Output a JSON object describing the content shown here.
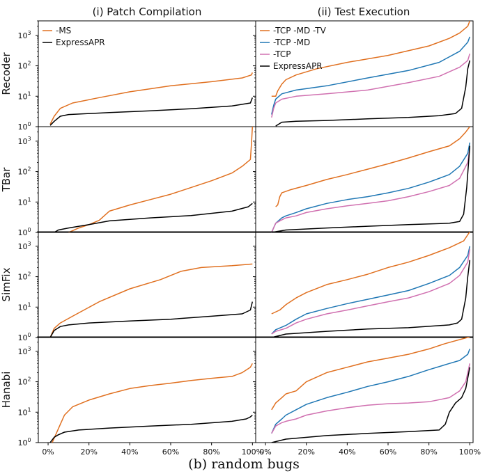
{
  "figure": {
    "caption": "(b) random bugs",
    "column_titles": [
      "(i) Patch Compilation",
      "(ii) Test Execution"
    ],
    "row_labels": [
      "Recoder",
      "TBar",
      "SimFix",
      "Hanabi"
    ],
    "x_ticks": [
      "0%",
      "20%",
      "40%",
      "60%",
      "80%",
      "100%"
    ],
    "y_ticks": [
      "10^0",
      "10^1",
      "10^2",
      "10^3"
    ]
  },
  "colors": {
    "orange": "#e07020",
    "blue": "#1f77b4",
    "pink": "#d070b0",
    "black": "#000000"
  },
  "chart_data": [
    {
      "type": "line",
      "panel": "Recoder / (i) Patch Compilation",
      "xlim": [
        0,
        100
      ],
      "ylim": [
        1,
        3000
      ],
      "yscale": "log",
      "legend": "top-left",
      "series": [
        {
          "name": "-MS",
          "color": "orange",
          "x": [
            1,
            3,
            6,
            12,
            25,
            40,
            60,
            80,
            95,
            99.5,
            100
          ],
          "y": [
            1.2,
            2.2,
            4,
            6,
            9,
            14,
            22,
            30,
            40,
            50,
            60
          ]
        },
        {
          "name": "ExpressAPR",
          "color": "black",
          "x": [
            1,
            3,
            6,
            10,
            30,
            50,
            70,
            90,
            99,
            100
          ],
          "y": [
            1.1,
            1.5,
            2.2,
            2.5,
            2.9,
            3.3,
            3.9,
            4.8,
            6,
            9
          ]
        }
      ]
    },
    {
      "type": "line",
      "panel": "Recoder / (ii) Test Execution",
      "xlim": [
        0,
        100
      ],
      "ylim": [
        1,
        3000
      ],
      "yscale": "log",
      "legend": "top-left",
      "series": [
        {
          "name": "-TCP -MD -TV",
          "color": "orange",
          "x": [
            3,
            5,
            6,
            8,
            10,
            15,
            25,
            40,
            60,
            80,
            90,
            95,
            99,
            100
          ],
          "y": [
            10,
            10,
            15,
            25,
            35,
            50,
            80,
            130,
            220,
            450,
            800,
            1200,
            2000,
            3000
          ]
        },
        {
          "name": "-TCP -MD",
          "color": "blue",
          "x": [
            3,
            4,
            5,
            8,
            15,
            30,
            50,
            70,
            85,
            95,
            99,
            100
          ],
          "y": [
            2.5,
            5,
            8,
            12,
            16,
            22,
            40,
            70,
            130,
            300,
            600,
            900
          ]
        },
        {
          "name": "-TCP",
          "color": "pink",
          "x": [
            3,
            4,
            5,
            8,
            15,
            30,
            50,
            70,
            85,
            95,
            99,
            100
          ],
          "y": [
            2,
            4,
            6,
            8,
            10,
            12,
            16,
            28,
            45,
            90,
            150,
            250
          ]
        },
        {
          "name": "ExpressAPR",
          "color": "black",
          "x": [
            5,
            8,
            15,
            30,
            50,
            70,
            85,
            93,
            96,
            98,
            99,
            100
          ],
          "y": [
            1.05,
            1.4,
            1.5,
            1.6,
            1.8,
            2.0,
            2.3,
            2.7,
            4,
            20,
            80,
            150
          ]
        }
      ]
    },
    {
      "type": "line",
      "panel": "TBar / (i) Patch Compilation",
      "xlim": [
        0,
        100
      ],
      "ylim": [
        1,
        3000
      ],
      "yscale": "log",
      "series": [
        {
          "name": "-MS",
          "color": "orange",
          "x": [
            10,
            15,
            20,
            25,
            30,
            40,
            50,
            60,
            70,
            80,
            90,
            95,
            99,
            99.5,
            100
          ],
          "y": [
            1,
            1.4,
            1.8,
            2.5,
            5,
            8,
            12,
            18,
            30,
            50,
            90,
            150,
            250,
            800,
            3000
          ]
        },
        {
          "name": "ExpressAPR",
          "color": "black",
          "x": [
            3,
            5,
            10,
            20,
            30,
            50,
            70,
            90,
            98,
            100
          ],
          "y": [
            1,
            1.2,
            1.4,
            1.8,
            2.4,
            3,
            3.6,
            5,
            7,
            9
          ]
        }
      ]
    },
    {
      "type": "line",
      "panel": "TBar / (ii) Test Execution",
      "xlim": [
        0,
        100
      ],
      "ylim": [
        1,
        3000
      ],
      "yscale": "log",
      "series": [
        {
          "name": "-TCP -MD -TV",
          "color": "orange",
          "x": [
            5,
            6,
            7,
            8,
            12,
            20,
            30,
            40,
            50,
            60,
            70,
            80,
            90,
            95,
            98,
            100
          ],
          "y": [
            7,
            8,
            15,
            20,
            25,
            35,
            55,
            80,
            120,
            180,
            280,
            450,
            700,
            1200,
            2000,
            3000
          ]
        },
        {
          "name": "-TCP -MD",
          "color": "blue",
          "x": [
            3,
            5,
            8,
            10,
            15,
            20,
            30,
            40,
            50,
            60,
            70,
            80,
            90,
            95,
            99,
            100
          ],
          "y": [
            1,
            2,
            3,
            3.5,
            4.5,
            6,
            9,
            12,
            15,
            20,
            28,
            45,
            80,
            150,
            400,
            900
          ]
        },
        {
          "name": "-TCP",
          "color": "pink",
          "x": [
            3,
            5,
            8,
            10,
            15,
            20,
            30,
            40,
            50,
            60,
            70,
            80,
            90,
            95,
            99,
            100
          ],
          "y": [
            1,
            2,
            2.6,
            3,
            3.5,
            4.5,
            6,
            7.5,
            9,
            11,
            15,
            22,
            35,
            60,
            200,
            600
          ]
        },
        {
          "name": "ExpressAPR",
          "color": "black",
          "x": [
            3,
            10,
            30,
            50,
            70,
            90,
            95,
            97,
            98.5,
            100
          ],
          "y": [
            1,
            1.2,
            1.4,
            1.6,
            1.8,
            2,
            2.3,
            4,
            30,
            700
          ]
        }
      ]
    },
    {
      "type": "line",
      "panel": "SimFix / (i) Patch Compilation",
      "xlim": [
        0,
        100
      ],
      "ylim": [
        1,
        3000
      ],
      "yscale": "log",
      "series": [
        {
          "name": "-MS",
          "color": "orange",
          "x": [
            1,
            3,
            6,
            12,
            25,
            40,
            55,
            65,
            75,
            90,
            100
          ],
          "y": [
            1,
            2,
            3,
            5,
            15,
            40,
            80,
            150,
            200,
            230,
            260
          ]
        },
        {
          "name": "ExpressAPR",
          "color": "black",
          "x": [
            1,
            3,
            6,
            10,
            20,
            40,
            60,
            80,
            95,
            99,
            100
          ],
          "y": [
            1,
            1.7,
            2.3,
            2.6,
            3,
            3.5,
            4,
            5,
            6,
            8,
            15
          ]
        }
      ]
    },
    {
      "type": "line",
      "panel": "SimFix / (ii) Test Execution",
      "xlim": [
        0,
        100
      ],
      "ylim": [
        1,
        3000
      ],
      "yscale": "log",
      "series": [
        {
          "name": "-TCP -MD -TV",
          "color": "orange",
          "x": [
            3,
            7,
            10,
            15,
            20,
            30,
            40,
            50,
            60,
            70,
            80,
            90,
            97,
            100
          ],
          "y": [
            6,
            8,
            12,
            20,
            30,
            55,
            80,
            120,
            200,
            300,
            500,
            900,
            1500,
            3000
          ]
        },
        {
          "name": "-TCP -MD",
          "color": "blue",
          "x": [
            3,
            5,
            10,
            15,
            20,
            30,
            40,
            50,
            60,
            70,
            80,
            90,
            95,
            99,
            100
          ],
          "y": [
            1.3,
            1.8,
            2.5,
            4,
            6,
            9,
            13,
            18,
            25,
            35,
            60,
            110,
            200,
            500,
            1000
          ]
        },
        {
          "name": "-TCP",
          "color": "pink",
          "x": [
            3,
            5,
            10,
            15,
            20,
            30,
            40,
            50,
            60,
            70,
            80,
            90,
            95,
            99,
            100
          ],
          "y": [
            1.3,
            1.6,
            2,
            3,
            4,
            6,
            8,
            11,
            15,
            20,
            32,
            60,
            110,
            300,
            800
          ]
        },
        {
          "name": "ExpressAPR",
          "color": "black",
          "x": [
            3,
            10,
            30,
            50,
            70,
            90,
            94,
            96,
            98,
            99,
            100
          ],
          "y": [
            1,
            1.3,
            1.6,
            1.9,
            2.1,
            2.6,
            3,
            4,
            20,
            100,
            350
          ]
        }
      ]
    },
    {
      "type": "line",
      "panel": "Hanabi / (i) Patch Compilation",
      "xlim": [
        0,
        100
      ],
      "ylim": [
        1,
        3000
      ],
      "yscale": "log",
      "series": [
        {
          "name": "-MS",
          "color": "orange",
          "x": [
            2,
            4,
            6,
            8,
            12,
            20,
            30,
            40,
            50,
            60,
            70,
            80,
            90,
            95,
            99,
            100
          ],
          "y": [
            1,
            2,
            4,
            8,
            15,
            25,
            40,
            60,
            75,
            90,
            110,
            130,
            150,
            200,
            300,
            400
          ]
        },
        {
          "name": "ExpressAPR",
          "color": "black",
          "x": [
            1,
            3,
            5,
            8,
            15,
            30,
            50,
            70,
            90,
            97,
            99,
            100
          ],
          "y": [
            1,
            1.5,
            1.8,
            2.2,
            2.6,
            3,
            3.5,
            4,
            5,
            6,
            7,
            8
          ]
        }
      ]
    },
    {
      "type": "line",
      "panel": "Hanabi / (ii) Test Execution",
      "xlim": [
        0,
        100
      ],
      "ylim": [
        1,
        3000
      ],
      "yscale": "log",
      "series": [
        {
          "name": "-TCP -MD -TV",
          "color": "orange",
          "x": [
            3,
            5,
            8,
            10,
            15,
            20,
            30,
            40,
            50,
            60,
            70,
            80,
            88,
            100
          ],
          "y": [
            12,
            20,
            30,
            40,
            50,
            100,
            200,
            300,
            450,
            600,
            800,
            1200,
            1800,
            3000
          ]
        },
        {
          "name": "-TCP -MD",
          "color": "blue",
          "x": [
            3,
            5,
            8,
            10,
            15,
            20,
            30,
            40,
            50,
            60,
            70,
            80,
            90,
            95,
            99,
            100
          ],
          "y": [
            2,
            4,
            6,
            8,
            12,
            18,
            30,
            45,
            70,
            100,
            150,
            250,
            400,
            500,
            800,
            1200
          ]
        },
        {
          "name": "-TCP",
          "color": "pink",
          "x": [
            3,
            5,
            8,
            10,
            15,
            20,
            30,
            40,
            50,
            60,
            70,
            80,
            90,
            95,
            98,
            100
          ],
          "y": [
            2,
            3.5,
            4.5,
            5,
            6,
            8,
            11,
            14,
            17,
            19,
            20,
            22,
            30,
            50,
            100,
            400
          ]
        },
        {
          "name": "ExpressAPR",
          "color": "black",
          "x": [
            3,
            10,
            30,
            50,
            70,
            85,
            88,
            90,
            93,
            96,
            98,
            99.5,
            100
          ],
          "y": [
            1,
            1.3,
            1.7,
            2,
            2.3,
            2.6,
            4,
            10,
            20,
            30,
            60,
            200,
            300
          ]
        }
      ]
    }
  ]
}
